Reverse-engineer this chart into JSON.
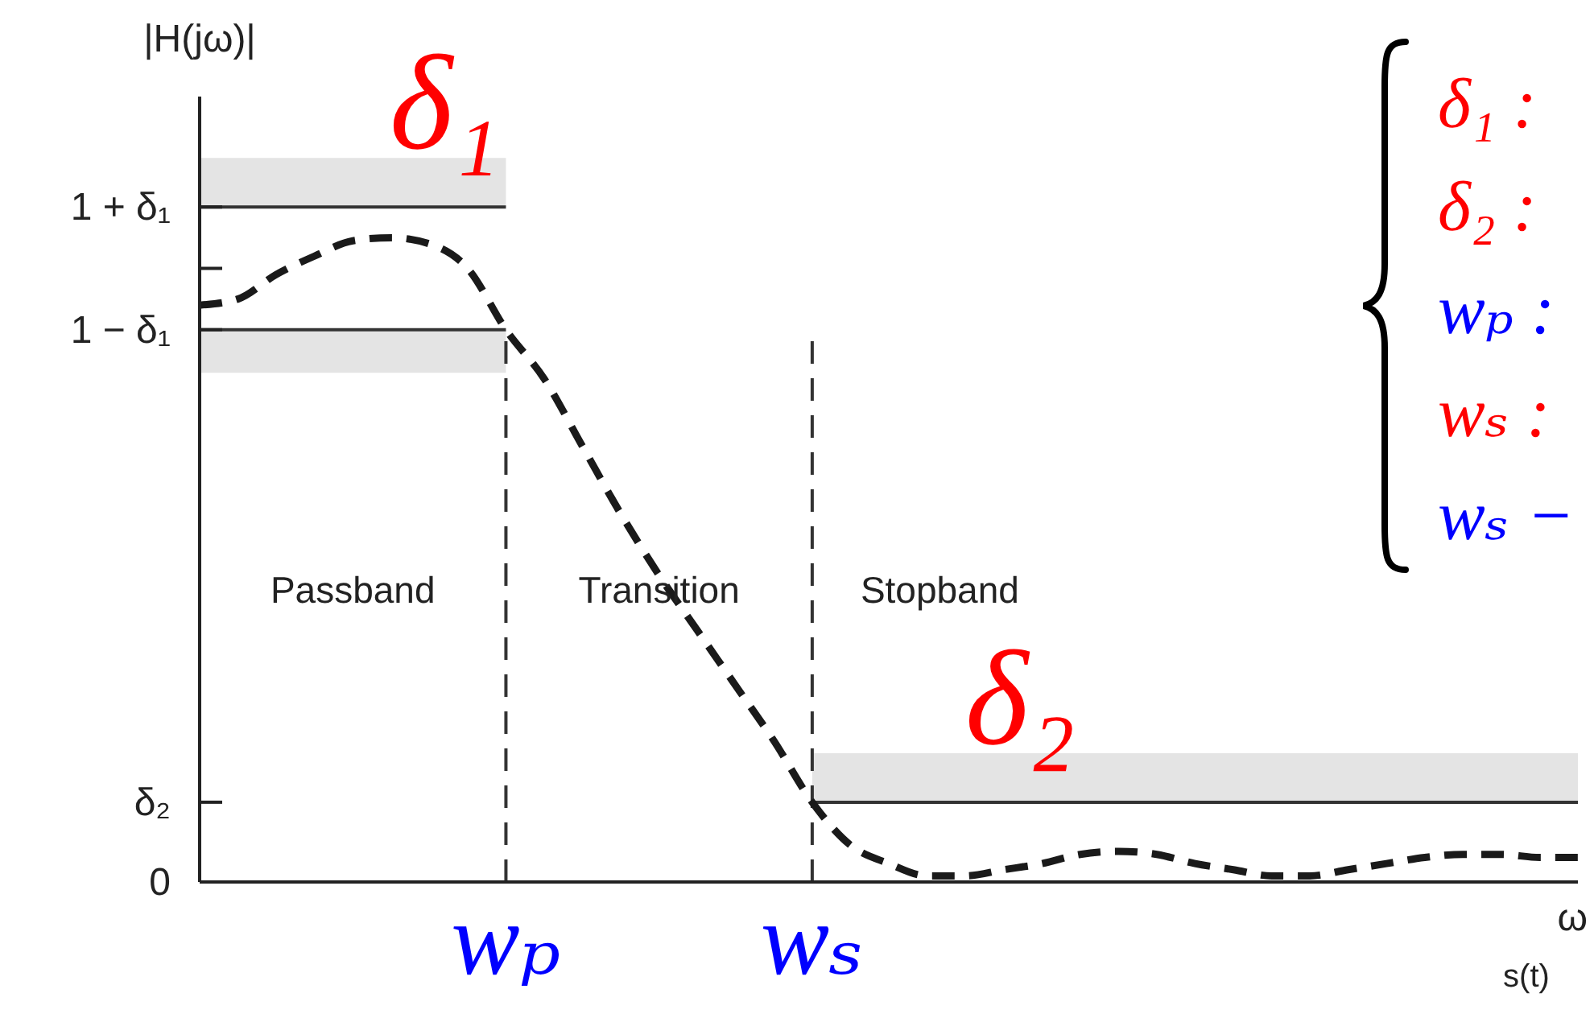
{
  "chart_data": {
    "type": "line",
    "ylabel": "|H(jω)|",
    "xlabel": "ω",
    "categories": [
      null,
      null,
      null,
      null,
      null,
      null,
      null,
      null,
      "wₚ",
      null,
      null,
      null,
      null,
      null,
      null,
      null,
      "wₛ",
      null,
      null,
      null,
      null,
      null,
      null,
      null,
      null,
      null,
      null,
      null,
      null,
      null,
      null,
      null,
      null,
      null,
      null,
      null,
      null
    ],
    "values": [
      0.94,
      0.95,
      0.99,
      1.02,
      1.045,
      1.05,
      1.04,
      1.0,
      0.9,
      0.82,
      0.71,
      0.6,
      0.5,
      0.41,
      0.32,
      0.23,
      0.13,
      0.06,
      0.03,
      0.01,
      0.01,
      0.02,
      0.03,
      0.045,
      0.05,
      0.045,
      0.03,
      0.02,
      0.01,
      0.01,
      0.02,
      0.03,
      0.04,
      0.045,
      0.045,
      0.04,
      0.04
    ],
    "color": "#1a1a1a",
    "line_style": "dashed",
    "marker": "none",
    "ylim": [
      0,
      1.28
    ],
    "yticks": [
      {
        "value": 0,
        "label": "0"
      },
      {
        "value": 0.13,
        "label": "δ₂"
      },
      {
        "value": 0.9,
        "label": "1 − δ₁"
      },
      {
        "value": 1,
        "label": null
      },
      {
        "value": 1.1,
        "label": "1 + δ₁"
      }
    ],
    "ref_lines": [
      {
        "axis": "y",
        "value": 1.1,
        "color": "#333333"
      },
      {
        "axis": "y",
        "value": 0.9,
        "color": "#333333"
      },
      {
        "axis": "y",
        "value": 0.13,
        "color": "#333333"
      },
      {
        "axis": "x",
        "value": "wₚ",
        "color": "#333333",
        "line_style": "dashed"
      },
      {
        "axis": "x",
        "value": "wₛ",
        "color": "#333333",
        "line_style": "dashed"
      }
    ],
    "bands": [
      {
        "axis": "y",
        "from": 1.1,
        "to": 1.18,
        "label": "δ₁",
        "color": "#e4e4e4"
      },
      {
        "axis": "y",
        "from": 0.83,
        "to": 0.9,
        "color": "#e4e4e4"
      },
      {
        "axis": "y",
        "from": 0.13,
        "to": 0.21,
        "label": "δ₂",
        "color": "#e4e4e4"
      }
    ],
    "annotations": [
      "δ₁ :",
      "δ₂ :",
      "wₚ :",
      "wₛ :",
      "wₛ −",
      "Passband",
      "Transition",
      "Stopband",
      "s(t)"
    ]
  }
}
